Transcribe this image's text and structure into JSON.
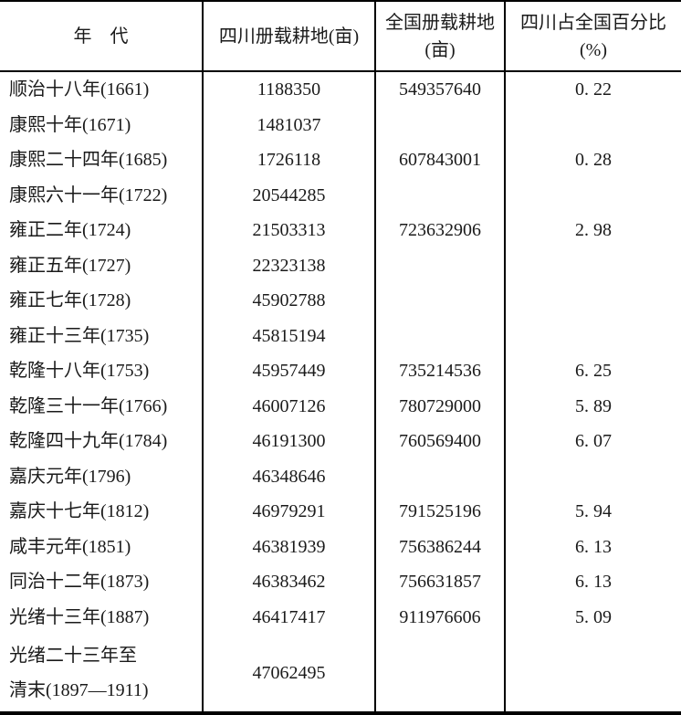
{
  "colors": {
    "background": "#ffffff",
    "text": "#1a1a1a",
    "border": "#000000"
  },
  "table": {
    "header": {
      "era": "年　代",
      "sichuan": "四川册载耕地(亩)",
      "national_line1": "全国册载耕地",
      "national_line2": "(亩)",
      "pct_line1": "四川占全国百分比",
      "pct_line2": "(%)"
    },
    "rows": [
      {
        "era": "顺治十八年(1661)",
        "sichuan": "1188350",
        "national": "549357640",
        "pct": "0. 22"
      },
      {
        "era": "康熙十年(1671)",
        "sichuan": "1481037",
        "national": "",
        "pct": ""
      },
      {
        "era": "康熙二十四年(1685)",
        "sichuan": "1726118",
        "national": "607843001",
        "pct": "0. 28"
      },
      {
        "era": "康熙六十一年(1722)",
        "sichuan": "20544285",
        "national": "",
        "pct": ""
      },
      {
        "era": "雍正二年(1724)",
        "sichuan": "21503313",
        "national": "723632906",
        "pct": "2. 98"
      },
      {
        "era": "雍正五年(1727)",
        "sichuan": "22323138",
        "national": "",
        "pct": ""
      },
      {
        "era": "雍正七年(1728)",
        "sichuan": "45902788",
        "national": "",
        "pct": ""
      },
      {
        "era": "雍正十三年(1735)",
        "sichuan": "45815194",
        "national": "",
        "pct": ""
      },
      {
        "era": "乾隆十八年(1753)",
        "sichuan": "45957449",
        "national": "735214536",
        "pct": "6. 25"
      },
      {
        "era": "乾隆三十一年(1766)",
        "sichuan": "46007126",
        "national": "780729000",
        "pct": "5. 89"
      },
      {
        "era": "乾隆四十九年(1784)",
        "sichuan": "46191300",
        "national": "760569400",
        "pct": "6. 07"
      },
      {
        "era": "嘉庆元年(1796)",
        "sichuan": "46348646",
        "national": "",
        "pct": ""
      },
      {
        "era": "嘉庆十七年(1812)",
        "sichuan": "46979291",
        "national": "791525196",
        "pct": "5. 94"
      },
      {
        "era": "咸丰元年(1851)",
        "sichuan": "46381939",
        "national": "756386244",
        "pct": "6. 13"
      },
      {
        "era": "同治十二年(1873)",
        "sichuan": "46383462",
        "national": "756631857",
        "pct": "6. 13"
      },
      {
        "era": "光绪十三年(1887)",
        "sichuan": "46417417",
        "national": "911976606",
        "pct": "5. 09"
      },
      {
        "era": [
          "光绪二十三年至",
          "清末(1897—1911)"
        ],
        "sichuan": "47062495",
        "national": "",
        "pct": ""
      }
    ]
  }
}
